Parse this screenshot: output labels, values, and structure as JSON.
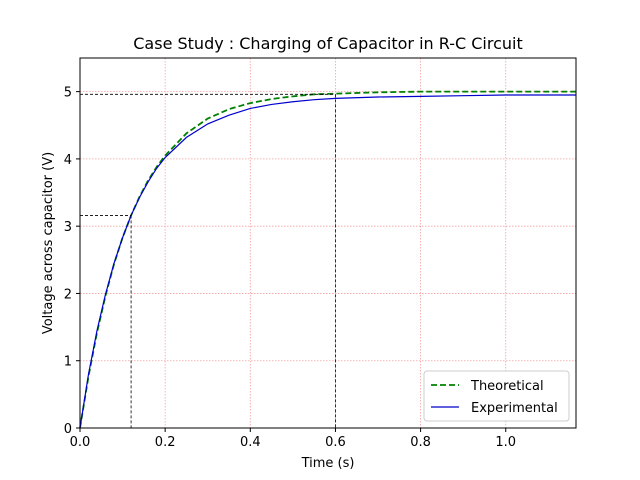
{
  "chart_data": {
    "type": "line",
    "title": "Case Study : Charging of Capacitor in R-C Circuit",
    "xlabel": "Time (s)",
    "ylabel": "Voltage across capacitor (V)",
    "xlim": [
      0,
      1.165
    ],
    "ylim": [
      0,
      5.5
    ],
    "x_ticks": [
      0.0,
      0.2,
      0.4,
      0.6,
      0.8,
      1.0
    ],
    "x_tick_labels": [
      "0.0",
      "0.2",
      "0.4",
      "0.6",
      "0.8",
      "1.0"
    ],
    "y_ticks": [
      0,
      1,
      2,
      3,
      4,
      5
    ],
    "y_tick_labels": [
      "0",
      "1",
      "2",
      "3",
      "4",
      "5"
    ],
    "grid": true,
    "grid_color": "#f4a0a0",
    "legend_position": "lower-right",
    "series": [
      {
        "name": "Theoretical",
        "color": "#008000",
        "style": "dashed",
        "x": [
          0,
          0.02,
          0.04,
          0.06,
          0.08,
          0.1,
          0.12,
          0.14,
          0.16,
          0.18,
          0.2,
          0.25,
          0.3,
          0.35,
          0.4,
          0.45,
          0.5,
          0.55,
          0.6,
          0.7,
          0.8,
          0.9,
          1.0,
          1.1,
          1.165
        ],
        "y": [
          0,
          0.77,
          1.42,
          1.97,
          2.44,
          2.83,
          3.16,
          3.44,
          3.68,
          3.88,
          4.05,
          4.38,
          4.6,
          4.74,
          4.83,
          4.89,
          4.93,
          4.96,
          4.97,
          4.99,
          5.0,
          5.0,
          5.0,
          5.0,
          5.0
        ]
      },
      {
        "name": "Experimental",
        "color": "#0000cc",
        "style": "solid",
        "x": [
          0,
          0.02,
          0.04,
          0.06,
          0.08,
          0.1,
          0.12,
          0.14,
          0.16,
          0.18,
          0.2,
          0.25,
          0.3,
          0.35,
          0.4,
          0.45,
          0.5,
          0.55,
          0.6,
          0.7,
          0.8,
          0.9,
          1.0,
          1.1,
          1.165
        ],
        "y": [
          0,
          0.8,
          1.45,
          1.99,
          2.45,
          2.83,
          3.16,
          3.43,
          3.66,
          3.86,
          4.02,
          4.32,
          4.52,
          4.65,
          4.75,
          4.81,
          4.85,
          4.88,
          4.9,
          4.92,
          4.93,
          4.94,
          4.95,
          4.95,
          4.95
        ]
      }
    ],
    "reference_lines": [
      {
        "x": 0.12,
        "y": 3.16
      },
      {
        "x": 0.6,
        "y": 4.96
      }
    ],
    "reference_color": "#000000"
  }
}
